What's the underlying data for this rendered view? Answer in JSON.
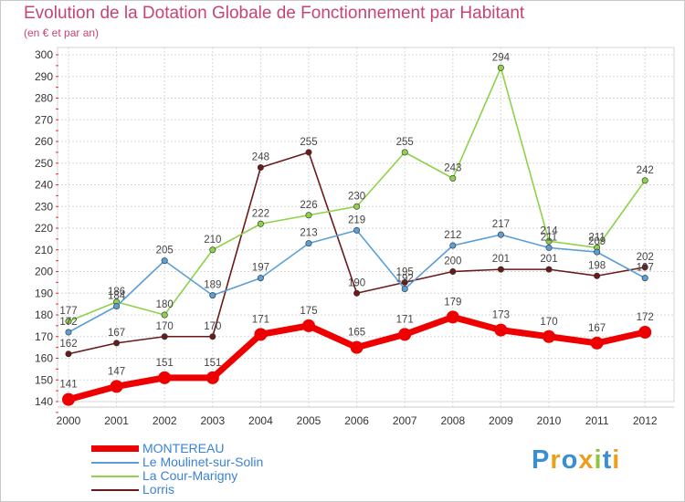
{
  "title": "Evolution de la Dotation Globale de Fonctionnement par Habitant",
  "subtitle": "(en € et par an)",
  "logo": {
    "letters": [
      "P",
      "r",
      "o",
      "x",
      "i",
      "t",
      "i"
    ],
    "colors": [
      "#3b8ed0",
      "#e8a020",
      "#3b8ed0",
      "#e8a020",
      "#8cc63f",
      "#3b8ed0",
      "#e8a020"
    ]
  },
  "chart_data": {
    "type": "line",
    "title": "Evolution de la Dotation Globale de Fonctionnement par Habitant",
    "subtitle": "(en € et par an)",
    "xlabel": "",
    "ylabel": "",
    "ylim": [
      140,
      300
    ],
    "yticks": [
      140,
      150,
      160,
      170,
      180,
      190,
      200,
      210,
      220,
      230,
      240,
      250,
      260,
      270,
      280,
      290,
      300
    ],
    "categories": [
      "2000",
      "2001",
      "2002",
      "2003",
      "2004",
      "2005",
      "2006",
      "2007",
      "2008",
      "2009",
      "2010",
      "2011",
      "2012"
    ],
    "grid": true,
    "legend_position": "bottom-left",
    "series": [
      {
        "name": "Lorris",
        "color": "#6b1a1a",
        "emphasis": false,
        "values": [
          162,
          167,
          170,
          170,
          248,
          255,
          190,
          195,
          200,
          201,
          201,
          198,
          202
        ],
        "labels": [
          "162",
          "167",
          "170",
          "170",
          "248",
          "255",
          "190",
          "195",
          "200",
          "201",
          "201",
          "198",
          "202"
        ]
      },
      {
        "name": "La Cour-Marigny",
        "color": "#8dd24a",
        "emphasis": false,
        "values": [
          177,
          186,
          180,
          210,
          222,
          226,
          230,
          255,
          243,
          294,
          214,
          211,
          242
        ],
        "labels": [
          "177",
          "186",
          "180",
          "210",
          "222",
          "226",
          "230",
          "255",
          "243",
          "294",
          "214",
          "211",
          "242"
        ]
      },
      {
        "name": "Le Moulinet-sur-Solin",
        "color": "#5a9fd8",
        "emphasis": false,
        "values": [
          172,
          184,
          205,
          189,
          197,
          213,
          219,
          192,
          212,
          217,
          211,
          209,
          197
        ],
        "labels": [
          "172",
          "184",
          "205",
          "189",
          "197",
          "213",
          "219",
          "192",
          "212",
          "217",
          "211",
          "209",
          "197"
        ]
      },
      {
        "name": "MONTEREAU",
        "color": "#ee0000",
        "emphasis": true,
        "values": [
          141,
          147,
          151,
          151,
          171,
          175,
          165,
          171,
          179,
          173,
          170,
          167,
          172
        ],
        "labels": [
          "141",
          "147",
          "151",
          "151",
          "171",
          "175",
          "165",
          "171",
          "179",
          "173",
          "170",
          "167",
          "172"
        ]
      }
    ]
  },
  "legend": [
    {
      "name": "MONTEREAU",
      "color": "#ee0000",
      "text_color": "#3b82d6"
    },
    {
      "name": "Le Moulinet-sur-Solin",
      "color": "#5a9fd8",
      "text_color": "#3b82d6"
    },
    {
      "name": "La Cour-Marigny",
      "color": "#8dd24a",
      "text_color": "#3b82d6"
    },
    {
      "name": "Lorris",
      "color": "#6b1a1a",
      "text_color": "#3b82d6"
    }
  ]
}
